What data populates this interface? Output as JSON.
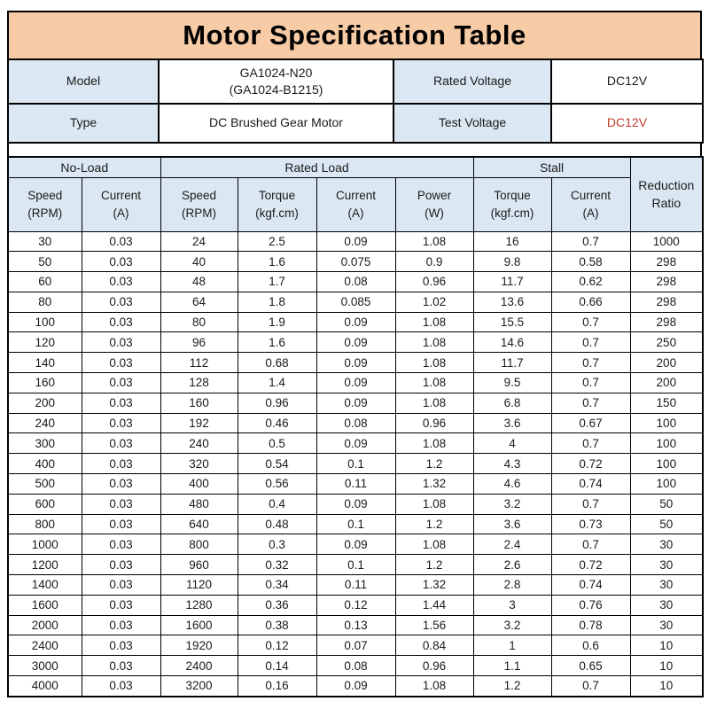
{
  "title": "Motor Specification Table",
  "colors": {
    "title_bg": "#f6cba6",
    "header_bg": "#dbe8f3",
    "border": "#000000",
    "test_voltage_text": "#c0392b"
  },
  "info": {
    "model_label": "Model",
    "model_line1": "GA1024-N20",
    "model_line2": "(GA1024-B1215)",
    "rated_voltage_label": "Rated Voltage",
    "rated_voltage_value": "DC12V",
    "type_label": "Type",
    "type_value": "DC Brushed Gear Motor",
    "test_voltage_label": "Test Voltage",
    "test_voltage_value": "DC12V"
  },
  "table": {
    "groups": [
      "No-Load",
      "Rated Load",
      "Stall"
    ],
    "reduction_header": {
      "line1": "Reduction",
      "line2": "Ratio"
    },
    "columns": [
      {
        "name": "Speed",
        "unit": "(RPM)"
      },
      {
        "name": "Current",
        "unit": "(A)"
      },
      {
        "name": "Speed",
        "unit": "(RPM)"
      },
      {
        "name": "Torque",
        "unit": "(kgf.cm)"
      },
      {
        "name": "Current",
        "unit": "(A)"
      },
      {
        "name": "Power",
        "unit": "(W)"
      },
      {
        "name": "Torque",
        "unit": "(kgf.cm)"
      },
      {
        "name": "Current",
        "unit": "(A)"
      }
    ],
    "rows": [
      [
        "30",
        "0.03",
        "24",
        "2.5",
        "0.09",
        "1.08",
        "16",
        "0.7",
        "1000"
      ],
      [
        "50",
        "0.03",
        "40",
        "1.6",
        "0.075",
        "0.9",
        "9.8",
        "0.58",
        "298"
      ],
      [
        "60",
        "0.03",
        "48",
        "1.7",
        "0.08",
        "0.96",
        "11.7",
        "0.62",
        "298"
      ],
      [
        "80",
        "0.03",
        "64",
        "1.8",
        "0.085",
        "1.02",
        "13.6",
        "0.66",
        "298"
      ],
      [
        "100",
        "0.03",
        "80",
        "1.9",
        "0.09",
        "1.08",
        "15.5",
        "0.7",
        "298"
      ],
      [
        "120",
        "0.03",
        "96",
        "1.6",
        "0.09",
        "1.08",
        "14.6",
        "0.7",
        "250"
      ],
      [
        "140",
        "0.03",
        "112",
        "0.68",
        "0.09",
        "1.08",
        "11.7",
        "0.7",
        "200"
      ],
      [
        "160",
        "0.03",
        "128",
        "1.4",
        "0.09",
        "1.08",
        "9.5",
        "0.7",
        "200"
      ],
      [
        "200",
        "0.03",
        "160",
        "0.96",
        "0.09",
        "1.08",
        "6.8",
        "0.7",
        "150"
      ],
      [
        "240",
        "0.03",
        "192",
        "0.46",
        "0.08",
        "0.96",
        "3.6",
        "0.67",
        "100"
      ],
      [
        "300",
        "0.03",
        "240",
        "0.5",
        "0.09",
        "1.08",
        "4",
        "0.7",
        "100"
      ],
      [
        "400",
        "0.03",
        "320",
        "0.54",
        "0.1",
        "1.2",
        "4.3",
        "0.72",
        "100"
      ],
      [
        "500",
        "0.03",
        "400",
        "0.56",
        "0.11",
        "1.32",
        "4.6",
        "0.74",
        "100"
      ],
      [
        "600",
        "0.03",
        "480",
        "0.4",
        "0.09",
        "1.08",
        "3.2",
        "0.7",
        "50"
      ],
      [
        "800",
        "0.03",
        "640",
        "0.48",
        "0.1",
        "1.2",
        "3.6",
        "0.73",
        "50"
      ],
      [
        "1000",
        "0.03",
        "800",
        "0.3",
        "0.09",
        "1.08",
        "2.4",
        "0.7",
        "30"
      ],
      [
        "1200",
        "0.03",
        "960",
        "0.32",
        "0.1",
        "1.2",
        "2.6",
        "0.72",
        "30"
      ],
      [
        "1400",
        "0.03",
        "1120",
        "0.34",
        "0.11",
        "1.32",
        "2.8",
        "0.74",
        "30"
      ],
      [
        "1600",
        "0.03",
        "1280",
        "0.36",
        "0.12",
        "1.44",
        "3",
        "0.76",
        "30"
      ],
      [
        "2000",
        "0.03",
        "1600",
        "0.38",
        "0.13",
        "1.56",
        "3.2",
        "0.78",
        "30"
      ],
      [
        "2400",
        "0.03",
        "1920",
        "0.12",
        "0.07",
        "0.84",
        "1",
        "0.6",
        "10"
      ],
      [
        "3000",
        "0.03",
        "2400",
        "0.14",
        "0.08",
        "0.96",
        "1.1",
        "0.65",
        "10"
      ],
      [
        "4000",
        "0.03",
        "3200",
        "0.16",
        "0.09",
        "1.08",
        "1.2",
        "0.7",
        "10"
      ]
    ]
  }
}
